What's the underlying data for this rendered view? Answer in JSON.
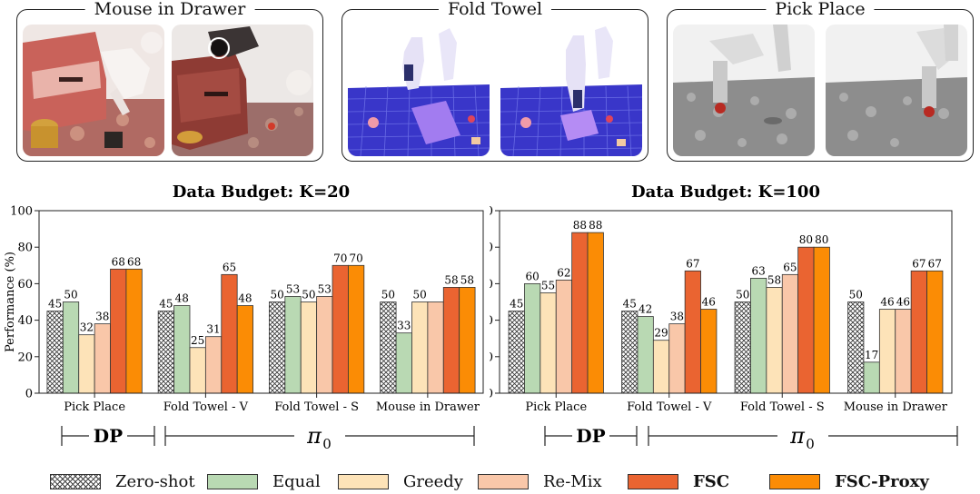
{
  "panels": [
    {
      "key": "mouse",
      "title": "Mouse in Drawer"
    },
    {
      "key": "towel",
      "title": "Fold Towel"
    },
    {
      "key": "pick",
      "title": "Pick Place"
    }
  ],
  "colors": {
    "zero_shot": "#ffffff",
    "equal": "#b9d9b3",
    "greedy": "#fde3b8",
    "remix": "#f9c7a9",
    "fsc": "#ea6431",
    "fsc_proxy": "#fb8c05"
  },
  "groups": {
    "dp": "DP",
    "pi0_main": "π",
    "pi0_sub": "0"
  },
  "legend": [
    {
      "key": "zero_shot",
      "label": "Zero-shot",
      "bold": false
    },
    {
      "key": "equal",
      "label": "Equal",
      "bold": false
    },
    {
      "key": "greedy",
      "label": "Greedy",
      "bold": false
    },
    {
      "key": "remix",
      "label": "Re-Mix",
      "bold": false
    },
    {
      "key": "fsc",
      "label": "FSC",
      "bold": true
    },
    {
      "key": "fsc_proxy",
      "label": "FSC-Proxy",
      "bold": true
    }
  ],
  "chart_data": [
    {
      "type": "bar",
      "title": "Data Budget: K=20",
      "ylabel": "Performance (%)",
      "xlabel": "",
      "ylim": [
        0,
        100
      ],
      "yticks": [
        0,
        20,
        40,
        60,
        80,
        100
      ],
      "categories": [
        "Pick Place",
        "Fold Towel - V",
        "Fold Towel - S",
        "Mouse in Drawer"
      ],
      "series": [
        {
          "name": "Zero-shot",
          "key": "zero_shot",
          "values": [
            45,
            45,
            50,
            50
          ]
        },
        {
          "name": "Equal",
          "key": "equal",
          "values": [
            50,
            48,
            53,
            33
          ]
        },
        {
          "name": "Greedy",
          "key": "greedy",
          "values": [
            32,
            25,
            50,
            50
          ]
        },
        {
          "name": "Re-Mix",
          "key": "remix",
          "values": [
            38,
            31,
            53,
            50
          ]
        },
        {
          "name": "FSC",
          "key": "fsc",
          "values": [
            68,
            65,
            70,
            58
          ]
        },
        {
          "name": "FSC-Proxy",
          "key": "fsc_proxy",
          "values": [
            68,
            48,
            70,
            58
          ]
        }
      ],
      "labels": [
        [
          "45",
          "50",
          "32",
          "38",
          "68",
          "68"
        ],
        [
          "45",
          "48",
          "25",
          "31",
          "65",
          "48"
        ],
        [
          "50",
          "53",
          "50",
          "53",
          "70",
          "70"
        ],
        [
          "50",
          "33",
          "50",
          "",
          "58",
          "58"
        ]
      ]
    },
    {
      "type": "bar",
      "title": "Data Budget: K=100",
      "ylabel": "",
      "xlabel": "",
      "ylim": [
        0,
        100
      ],
      "yticks": [
        0,
        20,
        40,
        60,
        80,
        100
      ],
      "categories": [
        "Pick Place",
        "Fold Towel - V",
        "Fold Towel - S",
        "Mouse in Drawer"
      ],
      "series": [
        {
          "name": "Zero-shot",
          "key": "zero_shot",
          "values": [
            45,
            45,
            50,
            50
          ]
        },
        {
          "name": "Equal",
          "key": "equal",
          "values": [
            60,
            42,
            63,
            17
          ]
        },
        {
          "name": "Greedy",
          "key": "greedy",
          "values": [
            55,
            29,
            58,
            46
          ]
        },
        {
          "name": "Re-Mix",
          "key": "remix",
          "values": [
            62,
            38,
            65,
            46
          ]
        },
        {
          "name": "FSC",
          "key": "fsc",
          "values": [
            88,
            67,
            80,
            67
          ]
        },
        {
          "name": "FSC-Proxy",
          "key": "fsc_proxy",
          "values": [
            88,
            46,
            80,
            67
          ]
        }
      ],
      "labels": [
        [
          "45",
          "60",
          "55",
          "62",
          "88",
          "88"
        ],
        [
          "45",
          "42",
          "29",
          "38",
          "67",
          "46"
        ],
        [
          "50",
          "63",
          "58",
          "65",
          "80",
          "80"
        ],
        [
          "50",
          "17",
          "46",
          "46",
          "67",
          "67"
        ]
      ]
    }
  ]
}
